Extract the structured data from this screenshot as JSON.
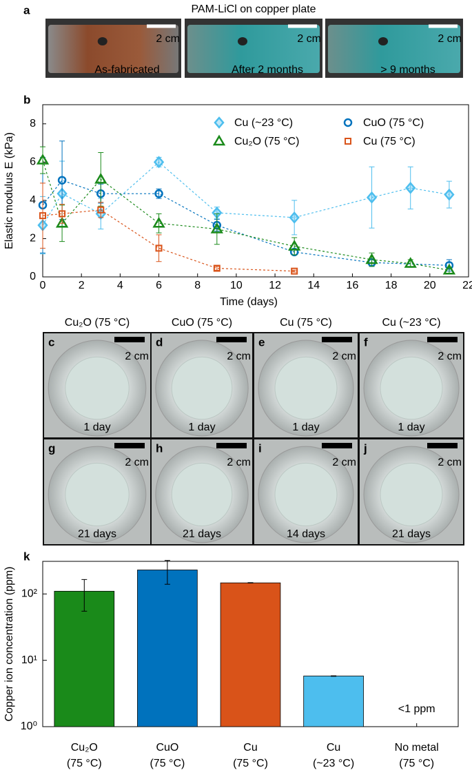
{
  "chart_data": [
    {
      "type": "line",
      "letter": "b",
      "xlabel": "Time (days)",
      "ylabel": "Elastic modulus E (kPa)",
      "xlim": [
        0,
        22
      ],
      "xticks": [
        0,
        2,
        4,
        6,
        8,
        10,
        12,
        14,
        16,
        18,
        20,
        22
      ],
      "ylim": [
        0,
        9
      ],
      "yticks": [
        0,
        2,
        4,
        6,
        8
      ],
      "series": [
        {
          "name": "Cu (~23 °C)",
          "color": "#4dbeee",
          "marker": "diamond",
          "x": [
            0,
            1,
            3,
            6,
            9,
            13,
            17,
            19,
            21
          ],
          "values": [
            2.7,
            4.35,
            3.3,
            6.0,
            3.35,
            3.1,
            4.15,
            4.65,
            4.3
          ],
          "errors": [
            1.5,
            1.7,
            0.8,
            0.25,
            0.3,
            0.9,
            1.6,
            1.1,
            0.7
          ]
        },
        {
          "name": "CuO (75 °C)",
          "color": "#0072bd",
          "marker": "circle",
          "x": [
            0,
            1,
            3,
            6,
            9,
            13,
            17,
            21
          ],
          "values": [
            3.75,
            5.05,
            4.35,
            4.35,
            2.7,
            1.3,
            0.75,
            0.6
          ],
          "errors": [
            2.5,
            2.05,
            0.5,
            0.25,
            0.3,
            0.15,
            0.2,
            0.3
          ]
        },
        {
          "name": "Cu₂O (75 °C)",
          "color": "#1a8a1a",
          "marker": "triangle",
          "x": [
            0,
            1,
            3,
            6,
            9,
            13,
            17,
            19,
            21
          ],
          "values": [
            6.1,
            2.8,
            5.1,
            2.8,
            2.5,
            1.6,
            0.9,
            0.7,
            0.35
          ],
          "errors": [
            0.7,
            0.95,
            1.4,
            0.5,
            0.8,
            0.45,
            0.35,
            0.2,
            0.15
          ]
        },
        {
          "name": "Cu (75 °C)",
          "color": "#d95319",
          "marker": "square",
          "x": [
            0,
            1,
            3,
            6,
            9,
            13
          ],
          "values": [
            3.2,
            3.3,
            3.5,
            1.5,
            0.45,
            0.3
          ],
          "errors": [
            1.7,
            0.5,
            0.4,
            0.7,
            0.1,
            0.05
          ]
        }
      ]
    },
    {
      "type": "bar",
      "letter": "k",
      "log": true,
      "ylabel": "Copper ion concentration (ppm)",
      "ylim": [
        1,
        310
      ],
      "yticks": [
        {
          "value": 1,
          "label": "10⁰"
        },
        {
          "value": 10,
          "label": "10¹"
        },
        {
          "value": 100,
          "label": "10²"
        }
      ],
      "categories": [
        [
          "Cu₂O",
          "(75 °C)"
        ],
        [
          "CuO",
          "(75 °C)"
        ],
        [
          "Cu",
          "(75 °C)"
        ],
        [
          "Cu",
          "(~23 °C)"
        ],
        [
          "No metal",
          "(75 °C)"
        ]
      ],
      "values": [
        110,
        230,
        147,
        5.8,
        null
      ],
      "errors": [
        55,
        90,
        1,
        0.05,
        null
      ],
      "colors": [
        "#1a8a1a",
        "#0072bd",
        "#d95319",
        "#4dbeee",
        null
      ],
      "annotation": "<1 ppm"
    }
  ],
  "panel_a": {
    "letter": "a",
    "title": "PAM-LiCl on copper plate",
    "photos": [
      {
        "scale": "2 cm",
        "caption": "As-fabricated"
      },
      {
        "scale": "2 cm",
        "caption": "After 2 months"
      },
      {
        "scale": "2 cm",
        "caption": "> 9 months"
      }
    ]
  },
  "panel_grid": {
    "headers": [
      {
        "text": "Cu₂O (75 °C)",
        "color": "#1a8a1a"
      },
      {
        "text": "CuO (75 °C)",
        "color": "#0072bd"
      },
      {
        "text": "Cu (75 °C)",
        "color": "#d95319"
      },
      {
        "text": "Cu (~23 °C)",
        "color": "#4dbeee"
      }
    ],
    "photos": [
      {
        "letter": "c",
        "scale": "2 cm",
        "caption": "1 day"
      },
      {
        "letter": "d",
        "scale": "2 cm",
        "caption": "1 day"
      },
      {
        "letter": "e",
        "scale": "2 cm",
        "caption": "1 day"
      },
      {
        "letter": "f",
        "scale": "2 cm",
        "caption": "1 day"
      },
      {
        "letter": "g",
        "scale": "2 cm",
        "caption": "21 days"
      },
      {
        "letter": "h",
        "scale": "2 cm",
        "caption": "21 days"
      },
      {
        "letter": "i",
        "scale": "2 cm",
        "caption": "14 days"
      },
      {
        "letter": "j",
        "scale": "2 cm",
        "caption": "21 days"
      }
    ]
  }
}
